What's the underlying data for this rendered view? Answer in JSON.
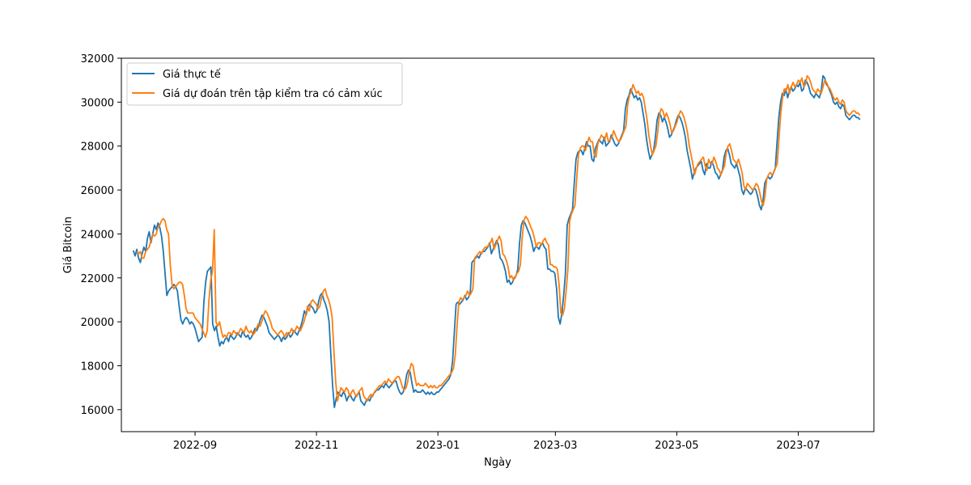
{
  "chart_data": {
    "type": "line",
    "title": "",
    "xlabel": "Ngày",
    "ylabel": "Giá Bitcoin",
    "x_start": "2022-08-01",
    "x_end": "2023-08-01",
    "xlim": [
      "2022-07-26",
      "2023-08-08"
    ],
    "ylim": [
      15000,
      32000
    ],
    "x_ticks": [
      "2022-09",
      "2022-11",
      "2023-01",
      "2023-03",
      "2023-05",
      "2023-07"
    ],
    "y_ticks": [
      16000,
      18000,
      20000,
      22000,
      24000,
      26000,
      28000,
      30000,
      32000
    ],
    "grid": false,
    "legend_position": "top-left",
    "series": [
      {
        "name": "Giá thực tế",
        "color": "#1f77b4",
        "values": [
          23250,
          23000,
          23300,
          22900,
          22700,
          23100,
          23400,
          23200,
          23800,
          24100,
          23600,
          24000,
          24400,
          24200,
          24500,
          24300,
          23900,
          23200,
          22200,
          21200,
          21400,
          21500,
          21600,
          21700,
          21600,
          21400,
          20700,
          20100,
          19900,
          20100,
          20200,
          20100,
          19900,
          20000,
          19900,
          19700,
          19400,
          19100,
          19200,
          19300,
          20900,
          21800,
          22300,
          22400,
          22500,
          19900,
          19600,
          19800,
          19300,
          18900,
          19100,
          19000,
          19200,
          19300,
          19100,
          19400,
          19300,
          19200,
          19300,
          19500,
          19400,
          19300,
          19600,
          19400,
          19300,
          19400,
          19200,
          19300,
          19500,
          19700,
          19600,
          19800,
          20100,
          20300,
          20200,
          20000,
          19800,
          19500,
          19400,
          19300,
          19200,
          19300,
          19400,
          19300,
          19100,
          19300,
          19200,
          19300,
          19500,
          19300,
          19400,
          19600,
          19500,
          19400,
          19600,
          19800,
          20100,
          20500,
          20300,
          20700,
          20800,
          20700,
          20600,
          20400,
          20500,
          20900,
          21200,
          21300,
          21000,
          20800,
          20500,
          20000,
          18500,
          17100,
          16100,
          16500,
          16800,
          16700,
          16600,
          16800,
          16700,
          16400,
          16600,
          16700,
          16500,
          16400,
          16600,
          16700,
          16800,
          16400,
          16300,
          16200,
          16400,
          16500,
          16400,
          16600,
          16700,
          16800,
          16900,
          16900,
          17000,
          17100,
          17000,
          17200,
          17100,
          17000,
          17100,
          17200,
          17300,
          17300,
          17000,
          16800,
          16700,
          16800,
          17100,
          17600,
          17800,
          17700,
          17200,
          16800,
          16900,
          16800,
          16800,
          16800,
          16900,
          16800,
          16700,
          16800,
          16700,
          16800,
          16700,
          16700,
          16800,
          16800,
          16900,
          17000,
          17100,
          17200,
          17300,
          17400,
          17600,
          18200,
          19500,
          20800,
          20900,
          20800,
          20900,
          21000,
          21200,
          21000,
          21100,
          21300,
          22700,
          22800,
          22900,
          23000,
          22900,
          23100,
          23200,
          23200,
          23300,
          23400,
          23600,
          23100,
          23300,
          23500,
          23700,
          23500,
          22900,
          22800,
          22600,
          22300,
          21800,
          21900,
          21700,
          21800,
          22000,
          22100,
          22400,
          23600,
          24400,
          24600,
          24500,
          24300,
          24100,
          23900,
          23600,
          23200,
          23400,
          23400,
          23300,
          23500,
          23600,
          23400,
          23300,
          22400,
          22400,
          22300,
          22300,
          22200,
          21500,
          20200,
          19900,
          20400,
          21200,
          22200,
          24400,
          24700,
          24900,
          25100,
          26300,
          27400,
          27700,
          27800,
          27800,
          27600,
          27900,
          28200,
          28000,
          28000,
          27400,
          27300,
          27900,
          28100,
          28300,
          28200,
          28100,
          28400,
          28000,
          28100,
          28200,
          28500,
          28300,
          28100,
          28000,
          28100,
          28300,
          28500,
          28700,
          29700,
          30100,
          30300,
          30600,
          30400,
          30200,
          30300,
          30100,
          30200,
          30000,
          29500,
          29000,
          28300,
          27800,
          27400,
          27600,
          27800,
          28400,
          29200,
          29500,
          29400,
          29100,
          29300,
          29100,
          28800,
          28400,
          28500,
          28700,
          28900,
          29200,
          29400,
          29300,
          29100,
          28800,
          28400,
          27800,
          27400,
          27000,
          26500,
          26800,
          27000,
          27100,
          27200,
          27300,
          26900,
          26700,
          27200,
          27000,
          27000,
          27300,
          27100,
          26800,
          26700,
          26500,
          26700,
          26900,
          27500,
          27800,
          27900,
          27600,
          27200,
          27100,
          27000,
          27200,
          26900,
          26600,
          26000,
          25800,
          26100,
          26000,
          25900,
          25800,
          25900,
          26100,
          26000,
          25700,
          25300,
          25100,
          25500,
          26300,
          26500,
          26600,
          26500,
          26600,
          26800,
          27000,
          28200,
          29300,
          30000,
          30400,
          30300,
          30600,
          30200,
          30500,
          30700,
          30500,
          30600,
          30800,
          30700,
          30900,
          30500,
          30600,
          31000,
          30900,
          30700,
          30400,
          30300,
          30200,
          30400,
          30300,
          30200,
          30500,
          31200,
          31100,
          30800,
          30700,
          30500,
          30300,
          30000,
          29900,
          30000,
          29800,
          29700,
          29900,
          29800,
          29400,
          29300,
          29200,
          29300,
          29400,
          29400,
          29300,
          29300,
          29200
        ],
        "label_order": 1
      },
      {
        "name": "Giá dự đoán trên tập kiểm tra có cảm xúc",
        "color": "#ff7f0e",
        "values": [
          null,
          null,
          23200,
          23100,
          23200,
          22900,
          22900,
          23200,
          23300,
          23400,
          23700,
          24000,
          23900,
          24000,
          24300,
          24400,
          24600,
          24700,
          24600,
          24200,
          24000,
          22600,
          21700,
          21500,
          21600,
          21700,
          21800,
          21800,
          21700,
          21200,
          20600,
          20400,
          20400,
          20400,
          20400,
          20200,
          20100,
          20000,
          19900,
          19700,
          19500,
          19300,
          19600,
          21000,
          21900,
          22300,
          24200,
          20000,
          19800,
          20000,
          19600,
          19300,
          19400,
          19300,
          19500,
          19500,
          19400,
          19600,
          19500,
          19400,
          19500,
          19700,
          19600,
          19500,
          19800,
          19600,
          19500,
          19600,
          19400,
          19500,
          19700,
          19900,
          19800,
          20000,
          20300,
          20500,
          20400,
          20200,
          20000,
          19700,
          19600,
          19500,
          19400,
          19500,
          19600,
          19500,
          19300,
          19500,
          19400,
          19500,
          19700,
          19500,
          19600,
          19800,
          19700,
          19600,
          19800,
          20000,
          20300,
          20700,
          20500,
          20900,
          21000,
          20900,
          20800,
          20600,
          20700,
          21100,
          21400,
          21500,
          21200,
          21000,
          20700,
          20200,
          18700,
          17300,
          16400,
          16700,
          17000,
          16900,
          16800,
          17000,
          16900,
          16600,
          16800,
          16900,
          16700,
          16600,
          16800,
          16900,
          17000,
          16600,
          16500,
          16400,
          16600,
          16700,
          16600,
          16800,
          16900,
          17000,
          17100,
          17100,
          17200,
          17300,
          17200,
          17400,
          17300,
          17200,
          17300,
          17400,
          17500,
          17500,
          17300,
          17000,
          16900,
          17000,
          17300,
          17800,
          18100,
          18000,
          17500,
          17100,
          17200,
          17100,
          17100,
          17100,
          17200,
          17100,
          17000,
          17100,
          17000,
          17100,
          17000,
          17000,
          17100,
          17100,
          17200,
          17300,
          17400,
          17500,
          17600,
          17700,
          17900,
          18500,
          19800,
          20900,
          21100,
          21000,
          21100,
          21200,
          21400,
          21200,
          21300,
          21500,
          22900,
          23000,
          23100,
          23200,
          23100,
          23300,
          23400,
          23400,
          23500,
          23600,
          23800,
          23300,
          23500,
          23700,
          23900,
          23700,
          23100,
          23000,
          22800,
          22500,
          22000,
          22100,
          21900,
          22000,
          22200,
          22300,
          22600,
          23800,
          24600,
          24800,
          24700,
          24500,
          24300,
          24100,
          23800,
          23400,
          23600,
          23600,
          23500,
          23700,
          23800,
          23600,
          23500,
          22600,
          22600,
          22500,
          22500,
          22400,
          21700,
          20400,
          20300,
          20600,
          21400,
          22400,
          24600,
          24900,
          25100,
          25300,
          26500,
          27600,
          27900,
          28000,
          28000,
          27800,
          28100,
          28400,
          28200,
          28200,
          27600,
          27500,
          28100,
          28300,
          28500,
          28400,
          28300,
          28600,
          28200,
          28300,
          28400,
          28700,
          28500,
          28300,
          28200,
          28300,
          28500,
          28700,
          28900,
          29900,
          30300,
          30500,
          30800,
          30600,
          30400,
          30500,
          30300,
          30400,
          30200,
          29700,
          29200,
          28500,
          28000,
          27600,
          27800,
          28000,
          28600,
          29400,
          29700,
          29600,
          29300,
          29500,
          29300,
          29000,
          28600,
          28700,
          28900,
          29100,
          29400,
          29600,
          29500,
          29300,
          29000,
          28600,
          28000,
          27600,
          27200,
          26700,
          27000,
          27200,
          27300,
          27400,
          27500,
          27100,
          26900,
          27400,
          27200,
          27200,
          27500,
          27300,
          27000,
          26900,
          26700,
          26900,
          27100,
          27700,
          28000,
          28100,
          27800,
          27400,
          27300,
          27200,
          27400,
          27100,
          26800,
          26200,
          26000,
          26300,
          26200,
          26100,
          26000,
          26100,
          26300,
          26200,
          25900,
          25500,
          25300,
          25700,
          26500,
          26700,
          26800,
          26700,
          26800,
          27000,
          27200,
          28400,
          29500,
          30200,
          30600,
          30500,
          30800,
          30400,
          30700,
          30900,
          30700,
          30800,
          31000,
          30900,
          31100,
          30700,
          30800,
          31200,
          31100,
          30900,
          30600,
          30500,
          30400,
          30600,
          30500,
          30400,
          30700,
          31000,
          30900,
          30700,
          30600,
          30400,
          30200,
          30100,
          30200,
          30000,
          29900,
          30100,
          30000,
          29600,
          29500,
          29400,
          29500,
          29600,
          29600,
          29500,
          29500,
          29400
        ]
      }
    ]
  }
}
